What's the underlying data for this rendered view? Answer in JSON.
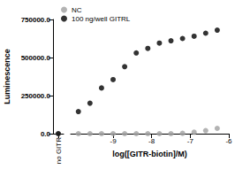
{
  "chart_data": {
    "type": "scatter",
    "x_label": "log([GITR-biotin]/M)",
    "y_label": "Luminescence",
    "x_break_label": "no GITR",
    "x": [
      -9.9,
      -9.6,
      -9.3,
      -9.0,
      -8.7,
      -8.4,
      -8.1,
      -7.8,
      -7.5,
      -7.2,
      -6.9,
      -6.6,
      -6.3
    ],
    "series": [
      {
        "name": "NC",
        "color": "#a0a0a0",
        "marker": "circle",
        "break_value": 0,
        "values": [
          0,
          0,
          0,
          0,
          0,
          0,
          0,
          0,
          0,
          2000,
          10000,
          20000,
          35000
        ]
      },
      {
        "name": "100 ng/well GITRL",
        "color": "#000000",
        "marker": "circle",
        "break_value": 0,
        "values": [
          145000,
          200000,
          300000,
          355000,
          440000,
          530000,
          560000,
          595000,
          610000,
          625000,
          640000,
          660000,
          680000
        ]
      }
    ],
    "xlim": [
      -10.1,
      -6
    ],
    "xticks": [
      -9,
      -8,
      -7,
      -6
    ],
    "ylim": [
      0,
      750000
    ],
    "yticks": [
      {
        "value": 0,
        "label": "0.0"
      },
      {
        "value": 250000,
        "label": "250000.0"
      },
      {
        "value": 500000,
        "label": "500000.0"
      },
      {
        "value": 750000,
        "label": "750000.0"
      }
    ],
    "legend": "top-left",
    "grid": false
  }
}
